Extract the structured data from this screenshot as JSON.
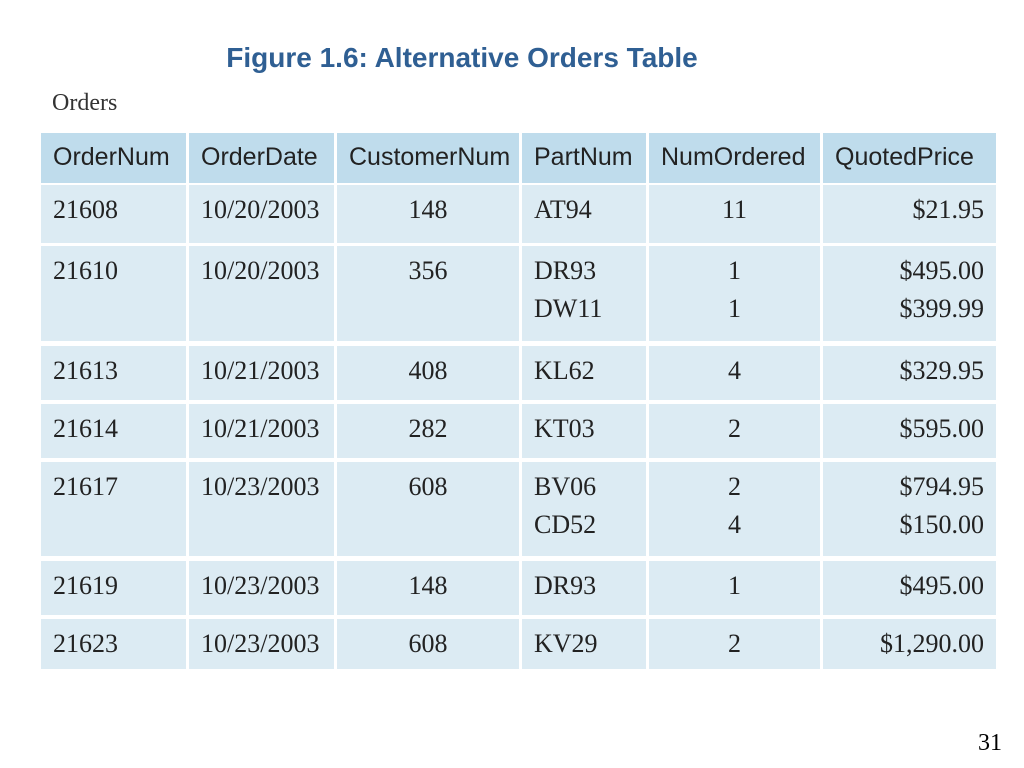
{
  "header": {
    "title": "Figure 1.6: Alternative Orders Table"
  },
  "table": {
    "caption": "Orders",
    "columns": [
      "OrderNum",
      "OrderDate",
      "CustomerNum",
      "PartNum",
      "NumOrdered",
      "QuotedPrice"
    ],
    "rows": [
      [
        "21608",
        "10/20/2003",
        "148",
        [
          "AT94"
        ],
        [
          "11"
        ],
        [
          "$21.95"
        ]
      ],
      [
        "21610",
        "10/20/2003",
        "356",
        [
          "DR93",
          "DW11"
        ],
        [
          "1",
          "1"
        ],
        [
          "$495.00",
          "$399.99"
        ]
      ],
      [
        "21613",
        "10/21/2003",
        "408",
        [
          "KL62"
        ],
        [
          "4"
        ],
        [
          "$329.95"
        ]
      ],
      [
        "21614",
        "10/21/2003",
        "282",
        [
          "KT03"
        ],
        [
          "2"
        ],
        [
          "$595.00"
        ]
      ],
      [
        "21617",
        "10/23/2003",
        "608",
        [
          "BV06",
          "CD52"
        ],
        [
          "2",
          "4"
        ],
        [
          "$794.95",
          "$150.00"
        ]
      ],
      [
        "21619",
        "10/23/2003",
        "148",
        [
          "DR93"
        ],
        [
          "1"
        ],
        [
          "$495.00"
        ]
      ],
      [
        "21623",
        "10/23/2003",
        "608",
        [
          "KV29"
        ],
        [
          "2"
        ],
        [
          "$1,290.00"
        ]
      ]
    ]
  },
  "footer": {
    "page": "31"
  }
}
